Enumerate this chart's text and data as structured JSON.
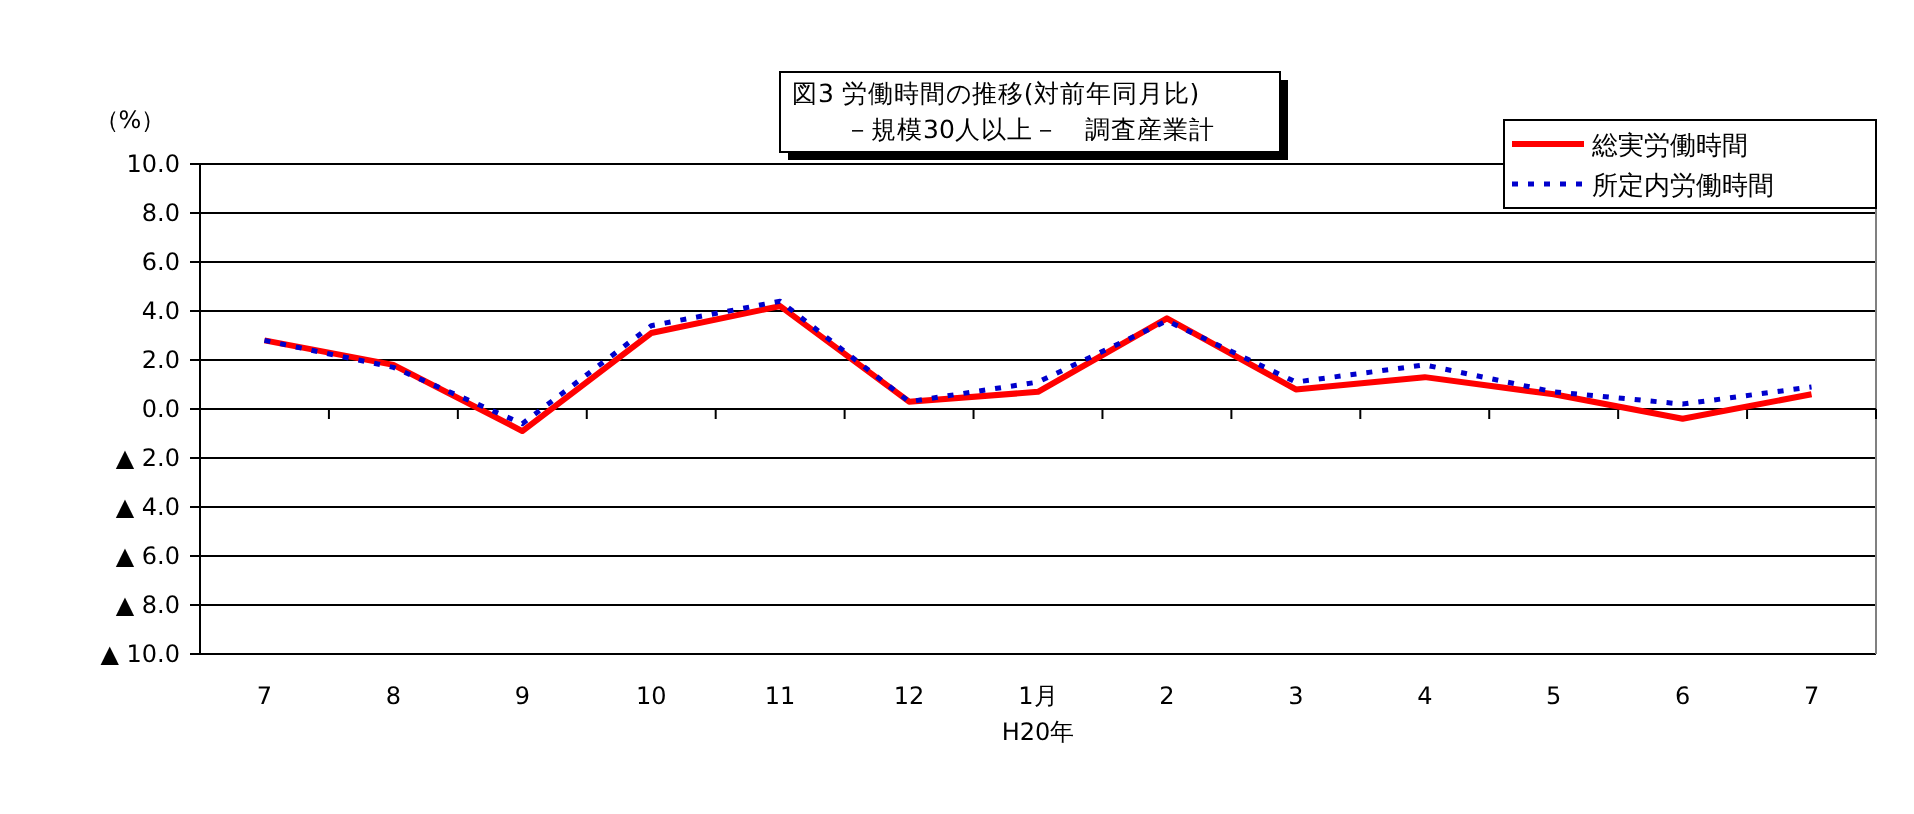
{
  "chart_data": {
    "type": "line",
    "title": "図3 労働時間の推移(対前年同月比)",
    "subtitle": "－規模30人以上－　調査産業計",
    "ylabel": "（%）",
    "categories": [
      "7",
      "8",
      "9",
      "10",
      "11",
      "12",
      "1月",
      "2",
      "3",
      "4",
      "5",
      "6",
      "7"
    ],
    "series": [
      {
        "name": "総実労働時間",
        "color": "#ff0000",
        "line_style": "solid",
        "values": [
          2.8,
          1.8,
          -0.9,
          3.1,
          4.2,
          0.3,
          0.7,
          3.7,
          0.8,
          1.3,
          0.6,
          -0.4,
          0.6
        ]
      },
      {
        "name": "所定内労働時間",
        "color": "#0000cc",
        "line_style": "dotted",
        "values": [
          2.8,
          1.7,
          -0.6,
          3.4,
          4.4,
          0.3,
          1.1,
          3.6,
          1.1,
          1.8,
          0.7,
          0.2,
          0.9
        ]
      }
    ],
    "ylim": [
      -10,
      10
    ],
    "yticks": [
      {
        "value": 10,
        "label": "10.0"
      },
      {
        "value": 8,
        "label": "8.0"
      },
      {
        "value": 6,
        "label": "6.0"
      },
      {
        "value": 4,
        "label": "4.0"
      },
      {
        "value": 2,
        "label": "2.0"
      },
      {
        "value": 0,
        "label": "0.0"
      },
      {
        "value": -2,
        "label": "▲ 2.0"
      },
      {
        "value": -4,
        "label": "▲ 4.0"
      },
      {
        "value": -6,
        "label": "▲ 6.0"
      },
      {
        "value": -8,
        "label": "▲ 8.0"
      },
      {
        "value": -10,
        "label": "▲ 10.0"
      }
    ],
    "grid": "y",
    "legend": "top right",
    "marker": "none",
    "annotations": [
      "H20年"
    ]
  }
}
